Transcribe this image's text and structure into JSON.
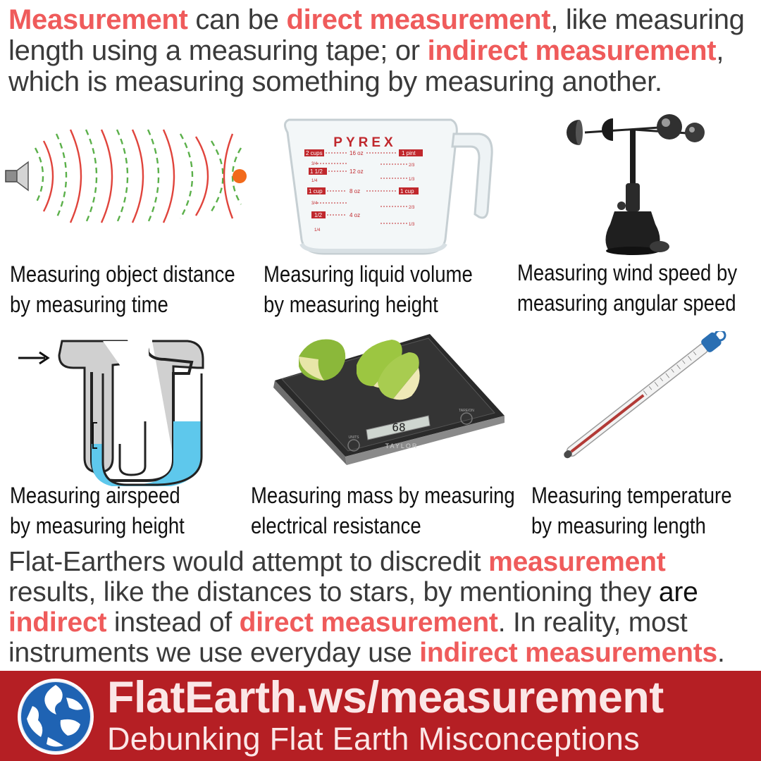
{
  "intro": {
    "p1": "Measurement",
    "p2": " can be ",
    "p3": "direct measurement",
    "p4": ", like measuring length using a measuring tape; or ",
    "p5": "indirect measurement",
    "p6": ", which is measuring something by measuring another."
  },
  "captions": [
    {
      "line1": "Measuring object distance",
      "line2": "by measuring time"
    },
    {
      "line1": "Measuring liquid volume",
      "line2": "by measuring height"
    },
    {
      "line1": "Measuring wind speed by",
      "line2": "measuring angular speed"
    },
    {
      "line1": "Measuring airspeed",
      "line2": "by measuring height"
    },
    {
      "line1": "Measuring mass by measuring",
      "line2": "electrical resistance"
    },
    {
      "line1": "Measuring temperature",
      "line2": "by measuring length"
    }
  ],
  "cup": {
    "brand": "PYREX",
    "mark_2cups": "2 cups",
    "mark_16oz": "16 oz",
    "mark_1pint": "1 pint",
    "mark_34a": "3/4",
    "mark_23a": "2/3",
    "mark_112": "1 1/2",
    "mark_12oz": "12 oz",
    "mark_14a": "1/4",
    "mark_13a": "1/3",
    "mark_1cup": "1 cup",
    "mark_8oz": "8 oz",
    "mark_1cup_r": "1 cup",
    "mark_34b": "3/4",
    "mark_23b": "2/3",
    "mark_12": "1/2",
    "mark_4oz": "4 oz",
    "mark_13b": "1/3",
    "mark_14b": "1/4"
  },
  "scale": {
    "display": "68",
    "brand": "TAYLOR",
    "button_left": "UNITS",
    "button_right": "TARE/ON"
  },
  "outro": {
    "p1": "Flat-Earthers would attempt to discredit ",
    "p2": "measurement",
    "p3": " results, like the distances to stars, by mentioning they ",
    "p4": "are",
    "p5": "indirect",
    "p6": " instead of ",
    "p7": "direct measurement",
    "p8": ". In reality, most instruments we use everyday use ",
    "p9": "indirect measurements",
    "p10": "."
  },
  "footer": {
    "title": "FlatEarth.ws/measurement",
    "subtitle": "Debunking Flat Earth Misconceptions"
  },
  "colors": {
    "accent": "#ef5b5b",
    "footer_bg": "#b51f24",
    "footer_text": "#fbe7e7",
    "water": "#5ec8ec",
    "wave_red": "#e0443c",
    "wave_green": "#5bb04a",
    "target": "#f26a1b"
  },
  "icons": [
    "sonar-diagram-icon",
    "measuring-cup-icon",
    "anemometer-icon",
    "pitot-manometer-icon",
    "kitchen-scale-icon",
    "thermometer-icon",
    "globe-logo-icon"
  ]
}
